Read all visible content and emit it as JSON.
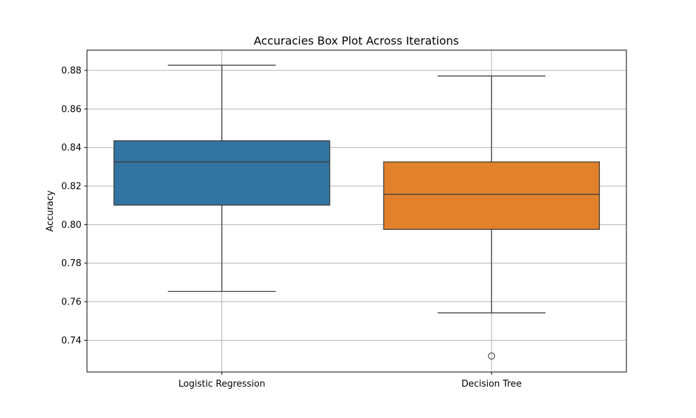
{
  "chart_data": {
    "type": "box",
    "title": "Accuracies Box Plot Across Iterations",
    "xlabel": "",
    "ylabel": "Accuracy",
    "ylim": [
      0.7235,
      0.8905
    ],
    "yticks": [
      0.74,
      0.76,
      0.78,
      0.8,
      0.82,
      0.84,
      0.86,
      0.88
    ],
    "ytick_labels": [
      "0.74",
      "0.76",
      "0.78",
      "0.80",
      "0.82",
      "0.84",
      "0.86",
      "0.88"
    ],
    "grid": true,
    "categories": [
      "Logistic Regression",
      "Decision Tree"
    ],
    "boxes": [
      {
        "category": "Logistic Regression",
        "whisker_low": 0.7653,
        "q1": 0.8101,
        "median": 0.8325,
        "q3": 0.8435,
        "whisker_high": 0.8827,
        "outliers": [],
        "color": "#3274a1"
      },
      {
        "category": "Decision Tree",
        "whisker_low": 0.7542,
        "q1": 0.7975,
        "median": 0.8157,
        "q3": 0.8325,
        "whisker_high": 0.8771,
        "outliers": [
          0.7318
        ],
        "color": "#e1812c"
      }
    ]
  }
}
